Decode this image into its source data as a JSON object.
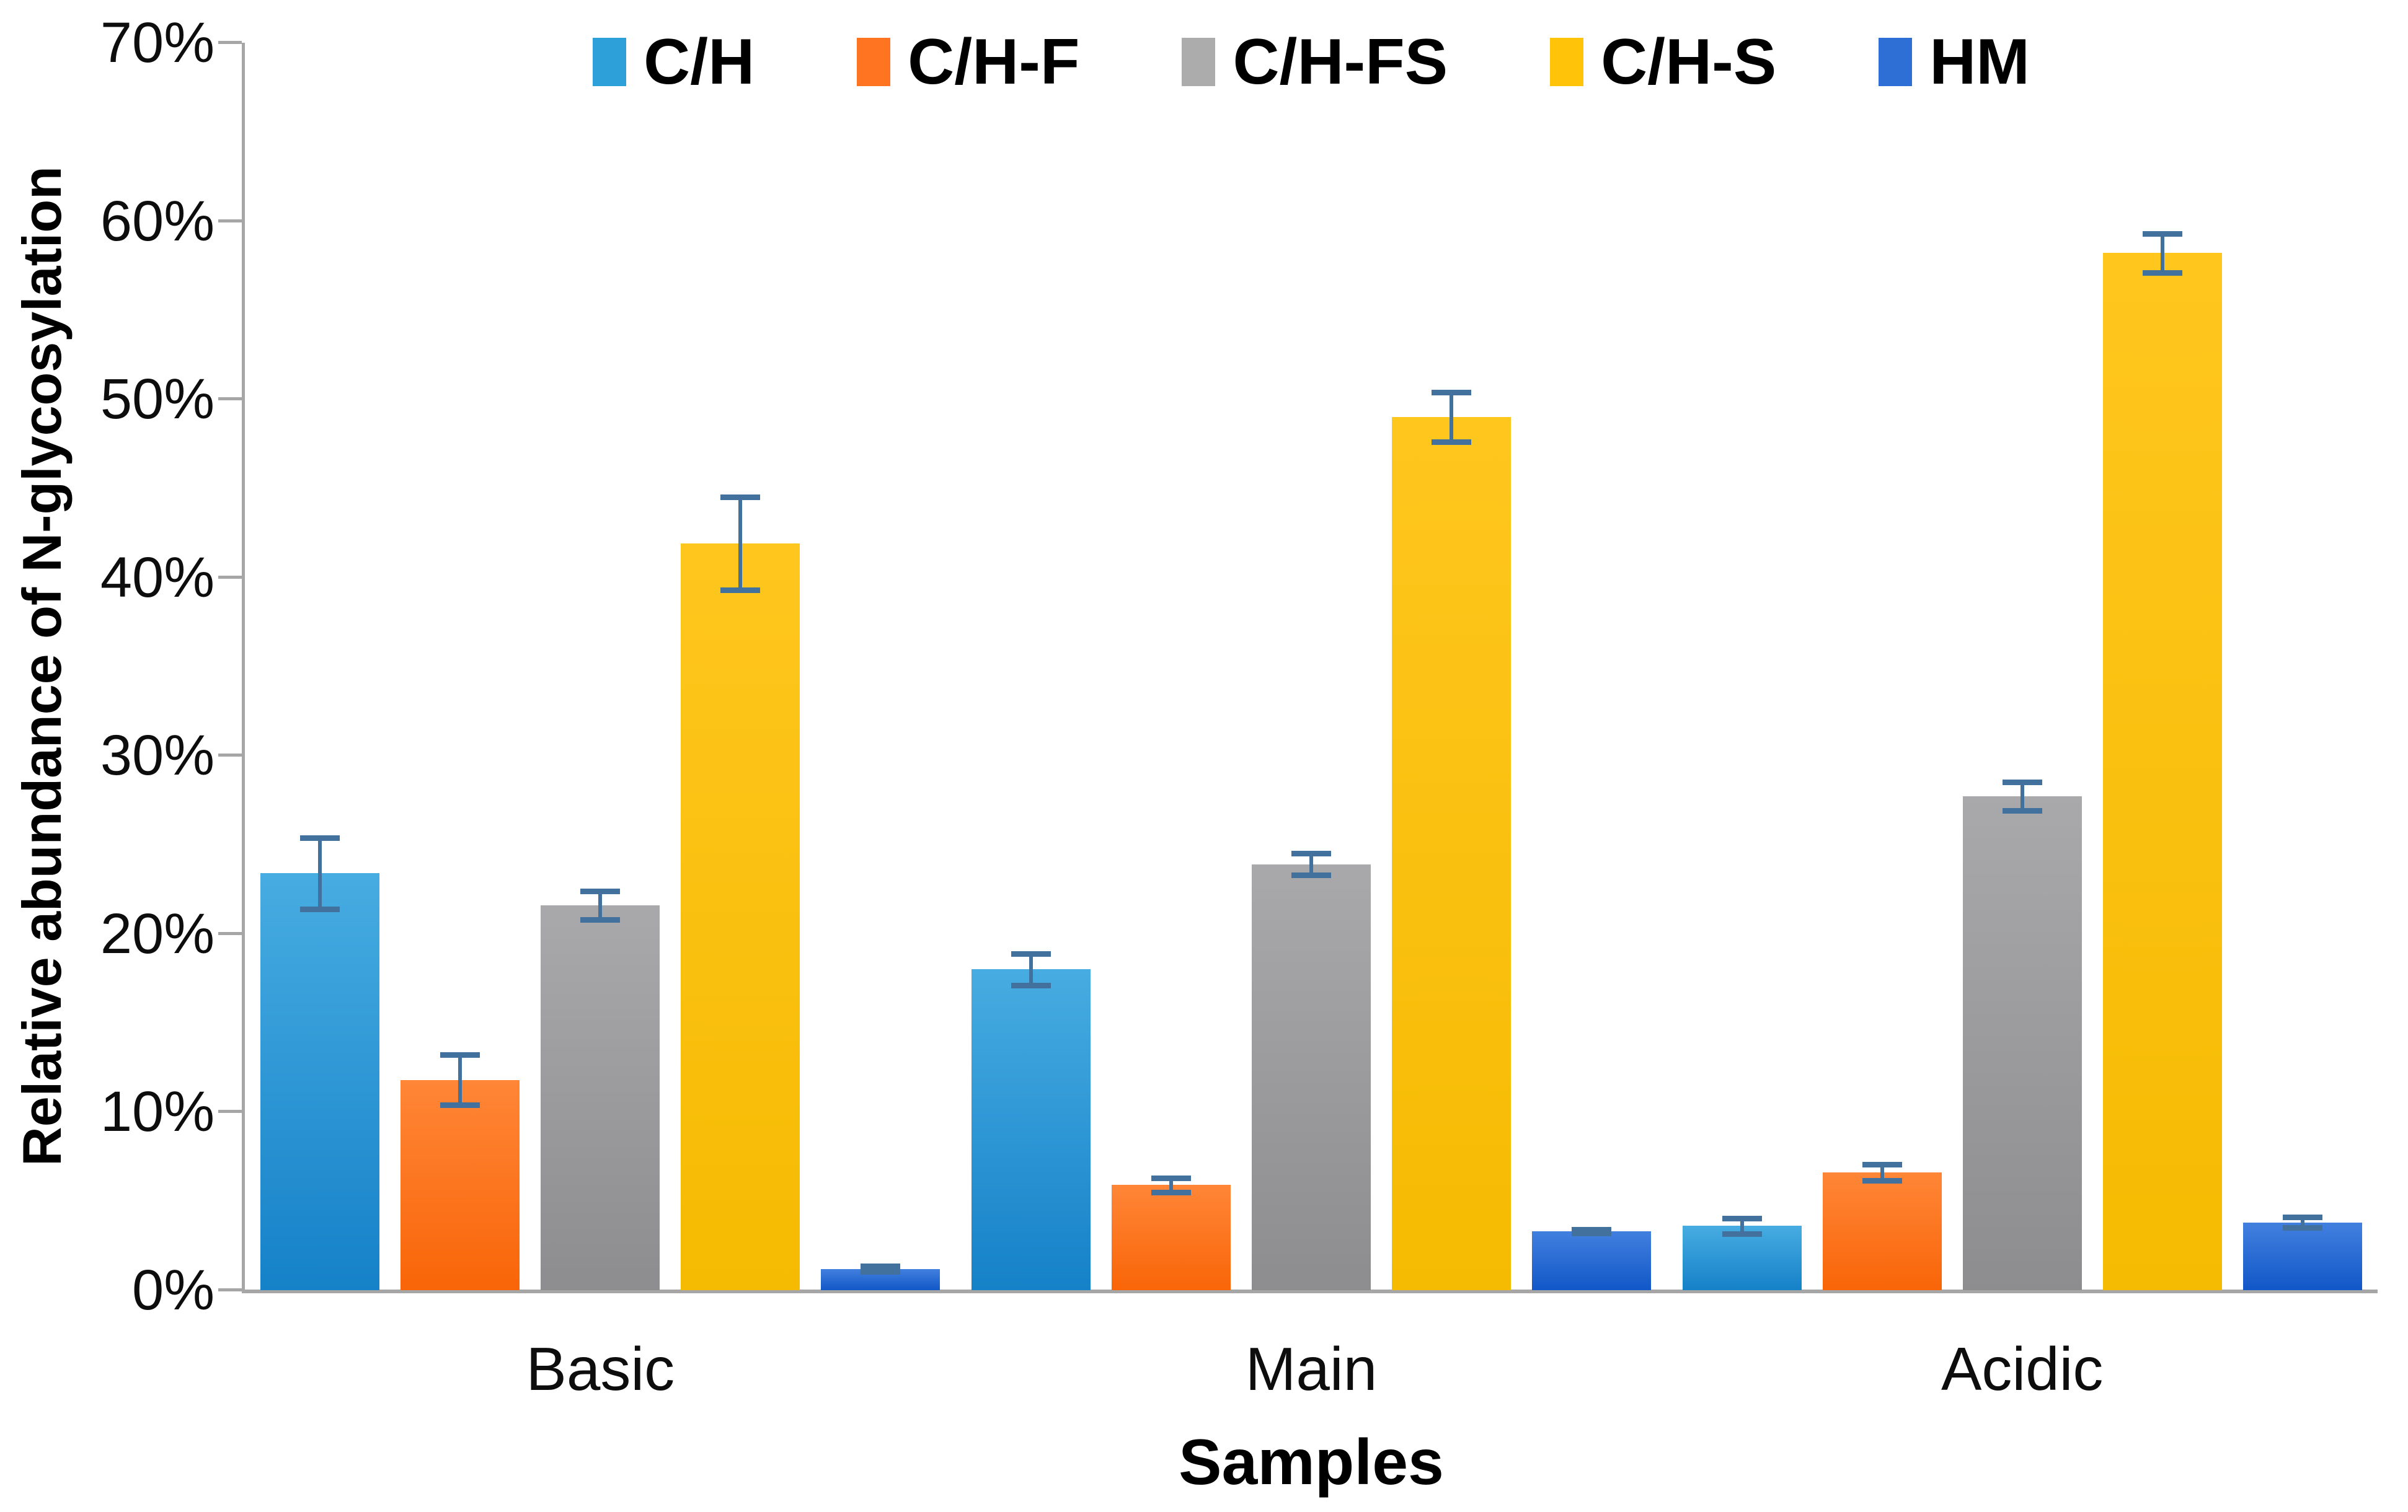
{
  "chart_data": {
    "type": "bar",
    "title": "",
    "categories": [
      "Basic",
      "Main",
      "Acidic"
    ],
    "series": [
      {
        "name": "C/H",
        "values": [
          23.4,
          18.0,
          3.6
        ],
        "errors": [
          2.0,
          0.9,
          0.45
        ],
        "color_top": "#47ACE1",
        "color_bottom": "#1581C8",
        "legend_color": "#2D9FD9"
      },
      {
        "name": "C/H-F",
        "values": [
          11.8,
          5.9,
          6.6
        ],
        "errors": [
          1.4,
          0.4,
          0.45
        ],
        "color_top": "#FF8637",
        "color_bottom": "#F96508",
        "legend_color": "#FF7420"
      },
      {
        "name": "C/H-FS",
        "values": [
          21.6,
          23.9,
          27.7
        ],
        "errors": [
          0.8,
          0.6,
          0.8
        ],
        "color_top": "#A9A9AB",
        "color_bottom": "#8D8D8F",
        "legend_color": "#ACACAC"
      },
      {
        "name": "C/H-S",
        "values": [
          41.9,
          49.0,
          58.2
        ],
        "errors": [
          2.6,
          1.4,
          1.1
        ],
        "color_top": "#FFC61E",
        "color_bottom": "#F5BB02",
        "legend_color": "#FFC40A"
      },
      {
        "name": "HM",
        "values": [
          1.2,
          3.3,
          3.8
        ],
        "errors": [
          0.15,
          0.1,
          0.3
        ],
        "color_top": "#4280DF",
        "color_bottom": "#1157C7",
        "legend_color": "#2E6FD6"
      }
    ],
    "xlabel": "Samples",
    "ylabel": "Relative abundance of N-glycosylation",
    "ylim": [
      0,
      70
    ],
    "ytick_step": 10,
    "ytick_labels": [
      "0%",
      "10%",
      "20%",
      "30%",
      "40%",
      "50%",
      "60%",
      "70%"
    ],
    "grid": false,
    "legend_position": "top",
    "error_bar_color": "#41719C",
    "axis_color": "#A6A6A6"
  }
}
